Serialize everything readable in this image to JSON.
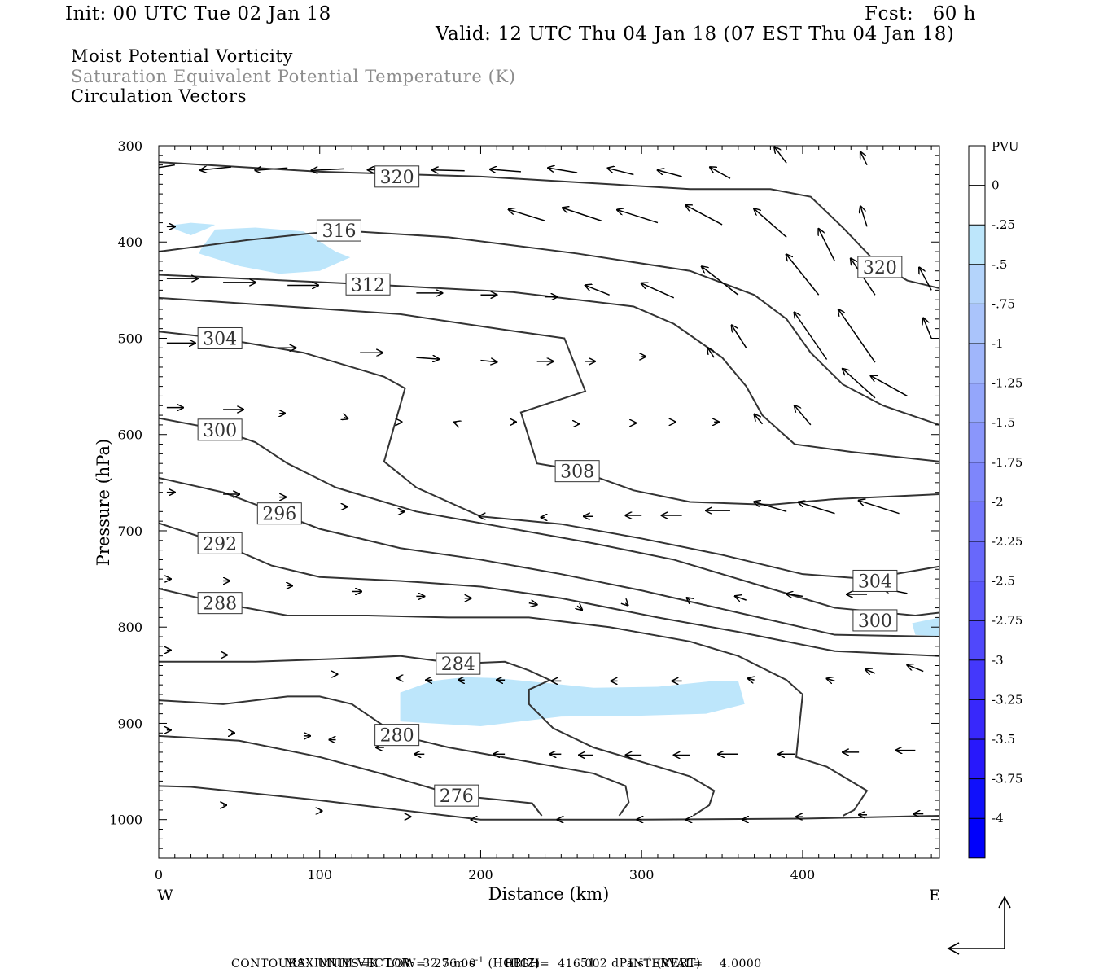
{
  "header": {
    "init": "Init: 00 UTC Tue 02 Jan 18",
    "fcst": "Fcst:   60 h",
    "valid": "Valid: 12 UTC Thu 04 Jan 18 (07 EST Thu 04 Jan 18)",
    "field1": "Moist Potential Vorticity",
    "field2": "Saturation Equivalent Potential Temperature (K)",
    "field3": "Circulation Vectors"
  },
  "footer": {
    "max_vector_label": "MAXIMUM VECTOR:",
    "horiz_value": "32.5 m s",
    "horiz_unit": "(HORIZ)",
    "vert_value": "51.2 dPa s",
    "vert_unit": "(VERT)",
    "exp": "-1",
    "contours": "CONTOURS:  UNITS=K  LOW=  276.00       HIGH=  416.00       INTERVAL=    4.0000"
  },
  "chart_data": {
    "type": "contour",
    "xlabel": "Distance (km)",
    "ylabel": "Pressure (hPa)",
    "xlim": [
      0,
      485
    ],
    "ylim": [
      300,
      1040
    ],
    "y_reversed": true,
    "x_ticks": [
      0,
      100,
      200,
      300,
      400
    ],
    "y_ticks": [
      300,
      400,
      500,
      600,
      700,
      800,
      900,
      1000
    ],
    "x_end_labels": {
      "left": "W",
      "right": "E"
    },
    "colorbar": {
      "title": "PVU",
      "labels": [
        "0",
        "-.25",
        "-.5",
        "-.75",
        "-1",
        "-1.25",
        "-1.5",
        "-1.75",
        "-2",
        "-2.25",
        "-2.5",
        "-2.75",
        "-3",
        "-3.25",
        "-3.5",
        "-3.75",
        "-4"
      ],
      "colors": [
        "#ffffff",
        "#ffffff",
        "#bde6fb",
        "#b4d4fb",
        "#aac4fb",
        "#a0b6fb",
        "#94a6fb",
        "#8a96fb",
        "#7e86fb",
        "#7376fb",
        "#6868fb",
        "#5c58fb",
        "#5048fb",
        "#4438fb",
        "#3828fb",
        "#2818fb",
        "#1010fb",
        "#0000fb"
      ]
    },
    "shading_color": "#bde6fb",
    "mpv_regions": [
      [
        [
          6,
          383
        ],
        [
          20,
          380
        ],
        [
          35,
          382
        ],
        [
          30,
          386
        ],
        [
          20,
          393
        ],
        [
          12,
          388
        ]
      ],
      [
        [
          26,
          408
        ],
        [
          35,
          387
        ],
        [
          60,
          385
        ],
        [
          90,
          389
        ],
        [
          110,
          410
        ],
        [
          119,
          416
        ],
        [
          100,
          430
        ],
        [
          75,
          433
        ],
        [
          50,
          425
        ],
        [
          25,
          412
        ]
      ],
      [
        [
          150,
          868
        ],
        [
          170,
          856
        ],
        [
          190,
          852
        ],
        [
          210,
          853
        ],
        [
          240,
          858
        ],
        [
          270,
          863
        ],
        [
          310,
          862
        ],
        [
          345,
          856
        ],
        [
          360,
          856
        ],
        [
          364,
          880
        ],
        [
          340,
          890
        ],
        [
          300,
          892
        ],
        [
          250,
          893
        ],
        [
          200,
          903
        ],
        [
          150,
          898
        ]
      ],
      [
        [
          468,
          796
        ],
        [
          485,
          790
        ],
        [
          485,
          810
        ],
        [
          470,
          808
        ]
      ]
    ],
    "theta_e_contours": [
      {
        "label": "320",
        "label_at": [
          148,
          332
        ],
        "points": [
          [
            0,
            317
          ],
          [
            100,
            327
          ],
          [
            200,
            332
          ],
          [
            280,
            340
          ],
          [
            330,
            345
          ],
          [
            380,
            345
          ],
          [
            405,
            353
          ],
          [
            425,
            385
          ],
          [
            445,
            420
          ],
          [
            465,
            440
          ],
          [
            485,
            448
          ]
        ]
      },
      {
        "label": "320",
        "label_at": [
          448,
          426
        ],
        "points": []
      },
      {
        "label": "316",
        "label_at": [
          112,
          388
        ],
        "points": [
          [
            0,
            410
          ],
          [
            55,
            398
          ],
          [
            112,
            388
          ],
          [
            180,
            395
          ],
          [
            260,
            412
          ],
          [
            330,
            430
          ],
          [
            370,
            455
          ],
          [
            390,
            480
          ],
          [
            405,
            515
          ],
          [
            425,
            548
          ],
          [
            450,
            570
          ],
          [
            485,
            590
          ]
        ]
      },
      {
        "label": "312",
        "label_at": [
          130,
          444
        ],
        "points": [
          [
            0,
            434
          ],
          [
            130,
            444
          ],
          [
            220,
            452
          ],
          [
            295,
            467
          ],
          [
            320,
            485
          ],
          [
            350,
            520
          ],
          [
            365,
            550
          ],
          [
            375,
            580
          ],
          [
            395,
            610
          ],
          [
            430,
            618
          ],
          [
            485,
            628
          ]
        ]
      },
      {
        "label": "308",
        "label_at": [
          260,
          638
        ],
        "points": [
          [
            0,
            458
          ],
          [
            80,
            467
          ],
          [
            150,
            475
          ],
          [
            210,
            490
          ],
          [
            252,
            500
          ],
          [
            265,
            555
          ],
          [
            225,
            577
          ],
          [
            235,
            630
          ],
          [
            260,
            637
          ],
          [
            295,
            658
          ],
          [
            330,
            670
          ],
          [
            380,
            673
          ],
          [
            420,
            667
          ],
          [
            485,
            662
          ]
        ]
      },
      {
        "label": "304",
        "label_at": [
          38,
          500
        ],
        "points": [
          [
            0,
            493
          ],
          [
            38,
            500
          ],
          [
            90,
            515
          ],
          [
            140,
            540
          ],
          [
            153,
            552
          ],
          [
            140,
            628
          ],
          [
            160,
            655
          ],
          [
            200,
            685
          ],
          [
            250,
            693
          ],
          [
            300,
            708
          ],
          [
            350,
            725
          ],
          [
            400,
            745
          ],
          [
            440,
            750
          ],
          [
            485,
            737
          ]
        ]
      },
      {
        "label": "304",
        "label_at": [
          445,
          752
        ],
        "points": []
      },
      {
        "label": "300",
        "label_at": [
          38,
          595
        ],
        "points": [
          [
            0,
            583
          ],
          [
            38,
            595
          ],
          [
            60,
            608
          ],
          [
            80,
            630
          ],
          [
            110,
            655
          ],
          [
            160,
            680
          ],
          [
            210,
            695
          ],
          [
            270,
            713
          ],
          [
            320,
            730
          ],
          [
            370,
            755
          ],
          [
            420,
            780
          ],
          [
            470,
            788
          ],
          [
            485,
            785
          ]
        ]
      },
      {
        "label": "300",
        "label_at": [
          445,
          793
        ],
        "points": []
      },
      {
        "label": "296",
        "label_at": [
          75,
          682
        ],
        "points": [
          [
            0,
            645
          ],
          [
            40,
            660
          ],
          [
            75,
            682
          ],
          [
            100,
            698
          ],
          [
            150,
            718
          ],
          [
            200,
            730
          ],
          [
            250,
            745
          ],
          [
            300,
            762
          ],
          [
            360,
            785
          ],
          [
            420,
            808
          ],
          [
            485,
            810
          ]
        ]
      },
      {
        "label": "292",
        "label_at": [
          38,
          713
        ],
        "points": [
          [
            0,
            692
          ],
          [
            38,
            713
          ],
          [
            70,
            736
          ],
          [
            100,
            748
          ],
          [
            150,
            752
          ],
          [
            200,
            758
          ],
          [
            250,
            770
          ],
          [
            310,
            790
          ],
          [
            360,
            805
          ],
          [
            420,
            825
          ],
          [
            485,
            830
          ]
        ]
      },
      {
        "label": "288",
        "label_at": [
          38,
          775
        ],
        "points": [
          [
            0,
            760
          ],
          [
            38,
            775
          ],
          [
            80,
            788
          ],
          [
            130,
            788
          ],
          [
            180,
            790
          ],
          [
            230,
            790
          ],
          [
            280,
            800
          ],
          [
            330,
            815
          ],
          [
            360,
            830
          ],
          [
            390,
            855
          ],
          [
            400,
            870
          ],
          [
            396,
            935
          ],
          [
            415,
            945
          ],
          [
            440,
            970
          ],
          [
            432,
            990
          ],
          [
            425,
            996
          ]
        ]
      },
      {
        "label": "284",
        "label_at": [
          186,
          838
        ],
        "points": [
          [
            0,
            836
          ],
          [
            60,
            836
          ],
          [
            110,
            833
          ],
          [
            150,
            830
          ],
          [
            186,
            838
          ],
          [
            215,
            836
          ],
          [
            230,
            845
          ],
          [
            243,
            855
          ],
          [
            230,
            865
          ],
          [
            230,
            880
          ],
          [
            245,
            905
          ],
          [
            270,
            925
          ],
          [
            310,
            945
          ],
          [
            330,
            955
          ],
          [
            345,
            970
          ],
          [
            342,
            985
          ],
          [
            332,
            996
          ]
        ]
      },
      {
        "label": "280",
        "label_at": [
          148,
          912
        ],
        "points": [
          [
            0,
            876
          ],
          [
            40,
            880
          ],
          [
            80,
            872
          ],
          [
            100,
            872
          ],
          [
            120,
            880
          ],
          [
            148,
            912
          ],
          [
            180,
            925
          ],
          [
            220,
            937
          ],
          [
            270,
            952
          ],
          [
            290,
            965
          ],
          [
            292,
            982
          ],
          [
            286,
            996
          ]
        ]
      },
      {
        "label": "276",
        "label_at": [
          185,
          975
        ],
        "points": [
          [
            0,
            913
          ],
          [
            50,
            918
          ],
          [
            100,
            935
          ],
          [
            140,
            953
          ],
          [
            185,
            975
          ],
          [
            215,
            980
          ],
          [
            232,
            983
          ],
          [
            238,
            996
          ]
        ]
      },
      {
        "label": "",
        "label_at": [
          0,
          0
        ],
        "points": [
          [
            0,
            965
          ],
          [
            20,
            966
          ],
          [
            100,
            980
          ],
          [
            200,
            1000
          ],
          [
            300,
            1000
          ],
          [
            400,
            999
          ],
          [
            485,
            996
          ]
        ]
      }
    ]
  }
}
